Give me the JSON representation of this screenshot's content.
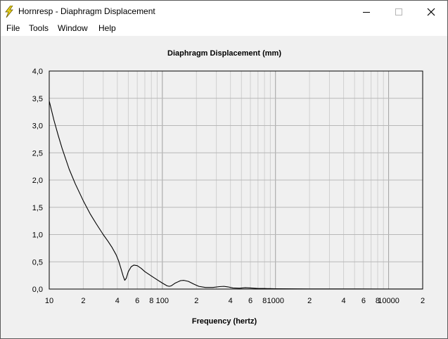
{
  "window": {
    "title": "Hornresp - Diaphragm Displacement",
    "minimize_icon": "minimize-icon",
    "maximize_icon": "maximize-icon",
    "close_icon": "close-icon",
    "app_icon": "lightning-bolt-icon"
  },
  "menu": [
    {
      "label": "File"
    },
    {
      "label": "Tools"
    },
    {
      "label": "Window"
    },
    {
      "label": "Help"
    }
  ],
  "chart_data": {
    "type": "line",
    "title": "Diaphragm Displacement (mm)",
    "xlabel": "Frequency (hertz)",
    "ylabel": "",
    "x_scale": "log",
    "xlim": [
      10,
      20000
    ],
    "ylim": [
      0,
      4.0
    ],
    "grid": true,
    "y_ticks": [
      "4,0",
      "3,5",
      "3,0",
      "2,5",
      "2,0",
      "1,5",
      "1,0",
      "0,5",
      "0,0"
    ],
    "x_tick_labels": [
      {
        "value": 10,
        "label": "10"
      },
      {
        "value": 20,
        "label": "2"
      },
      {
        "value": 40,
        "label": "4"
      },
      {
        "value": 60,
        "label": "6"
      },
      {
        "value": 80,
        "label": "8"
      },
      {
        "value": 100,
        "label": "100"
      },
      {
        "value": 200,
        "label": "2"
      },
      {
        "value": 400,
        "label": "4"
      },
      {
        "value": 600,
        "label": "6"
      },
      {
        "value": 800,
        "label": "8"
      },
      {
        "value": 1000,
        "label": "1000"
      },
      {
        "value": 2000,
        "label": "2"
      },
      {
        "value": 4000,
        "label": "4"
      },
      {
        "value": 6000,
        "label": "6"
      },
      {
        "value": 8000,
        "label": "8"
      },
      {
        "value": 10000,
        "label": "10000"
      },
      {
        "value": 20000,
        "label": "2"
      }
    ],
    "series": [
      {
        "color": "#000000",
        "points": [
          [
            10,
            3.45
          ],
          [
            11,
            3.1
          ],
          [
            12,
            2.82
          ],
          [
            13,
            2.58
          ],
          [
            15,
            2.2
          ],
          [
            17,
            1.93
          ],
          [
            20,
            1.62
          ],
          [
            23,
            1.38
          ],
          [
            26,
            1.2
          ],
          [
            30,
            1.0
          ],
          [
            33,
            0.88
          ],
          [
            36,
            0.76
          ],
          [
            39,
            0.63
          ],
          [
            41,
            0.52
          ],
          [
            43,
            0.38
          ],
          [
            45,
            0.24
          ],
          [
            46.5,
            0.16
          ],
          [
            48,
            0.2
          ],
          [
            50,
            0.32
          ],
          [
            53,
            0.41
          ],
          [
            56,
            0.44
          ],
          [
            60,
            0.43
          ],
          [
            65,
            0.38
          ],
          [
            70,
            0.32
          ],
          [
            80,
            0.24
          ],
          [
            90,
            0.17
          ],
          [
            100,
            0.11
          ],
          [
            110,
            0.06
          ],
          [
            115,
            0.05
          ],
          [
            120,
            0.06
          ],
          [
            130,
            0.11
          ],
          [
            145,
            0.155
          ],
          [
            155,
            0.16
          ],
          [
            170,
            0.14
          ],
          [
            190,
            0.09
          ],
          [
            210,
            0.05
          ],
          [
            240,
            0.03
          ],
          [
            280,
            0.03
          ],
          [
            320,
            0.045
          ],
          [
            350,
            0.05
          ],
          [
            380,
            0.04
          ],
          [
            420,
            0.02
          ],
          [
            480,
            0.015
          ],
          [
            540,
            0.025
          ],
          [
            600,
            0.02
          ],
          [
            700,
            0.01
          ],
          [
            800,
            0.01
          ],
          [
            1000,
            0.005
          ],
          [
            2000,
            0.003
          ],
          [
            5000,
            0.002
          ],
          [
            10000,
            0.001
          ],
          [
            20000,
            0.001
          ]
        ]
      }
    ]
  }
}
